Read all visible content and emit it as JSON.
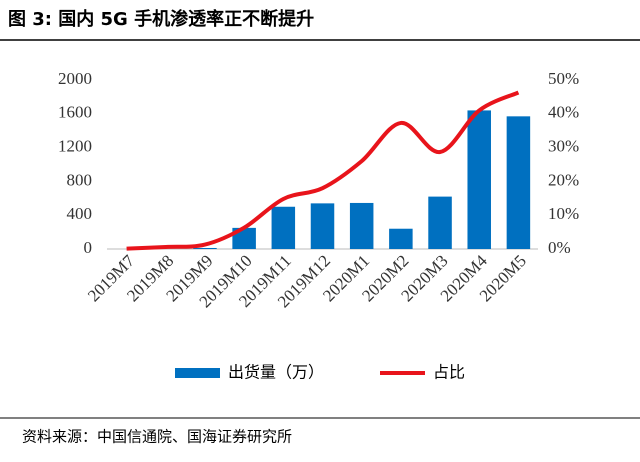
{
  "header": {
    "title": "图 3:  国内 5G 手机渗透率正不断提升"
  },
  "chart_data": {
    "type": "bar",
    "categories": [
      "2019M7",
      "2019M8",
      "2019M9",
      "2019M10",
      "2019M11",
      "2019M12",
      "2020M1",
      "2020M2",
      "2020M3",
      "2020M4",
      "2020M5"
    ],
    "series": [
      {
        "name": "出货量（万）",
        "color": "#0070c0",
        "type": "bar",
        "values": [
          0,
          0,
          12,
          250,
          500,
          540,
          545,
          240,
          620,
          1640,
          1570
        ]
      },
      {
        "name": "占比",
        "color": "#e8141b",
        "type": "line",
        "axis": "y2",
        "values": [
          0.1,
          0.6,
          1.3,
          6.3,
          14.8,
          18,
          26,
          37.3,
          28.7,
          41,
          46.3
        ]
      }
    ],
    "ylim": [
      0,
      2000
    ],
    "yticks": [
      0,
      400,
      800,
      1200,
      1600,
      2000
    ],
    "y2lim": [
      0,
      50
    ],
    "y2ticks": [
      {
        "value": 0,
        "label": "0%"
      },
      {
        "value": 10,
        "label": "10%"
      },
      {
        "value": 20,
        "label": "20%"
      },
      {
        "value": 30,
        "label": "30%"
      },
      {
        "value": 40,
        "label": "40%"
      },
      {
        "value": 50,
        "label": "50%"
      }
    ],
    "legend": "bottom"
  },
  "footer": {
    "source": "资料来源：中国信通院、国海证券研究所"
  }
}
